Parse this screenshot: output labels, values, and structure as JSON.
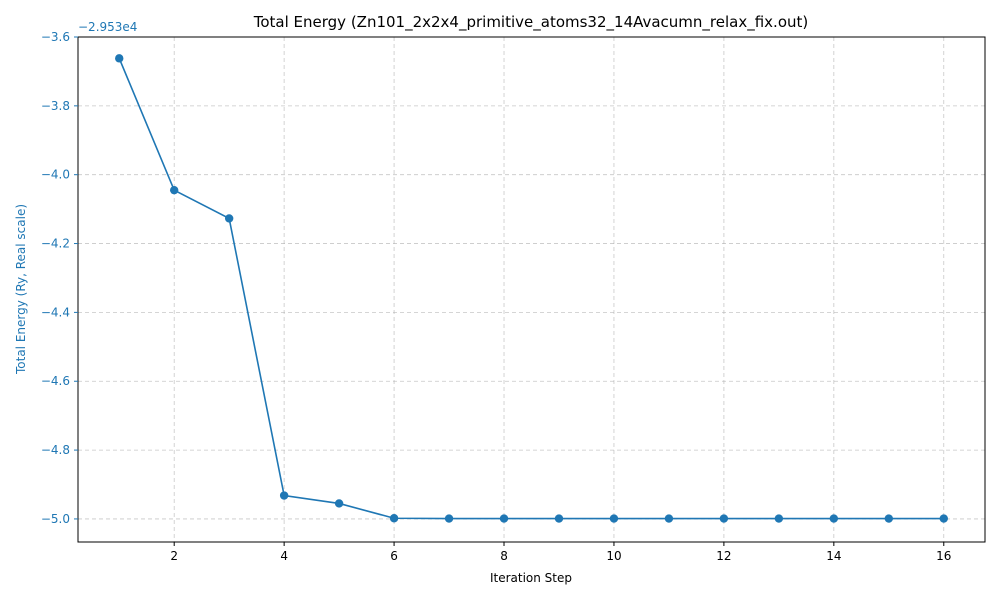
{
  "chart_data": {
    "type": "line",
    "title": "Total Energy (Zn101_2x2x4_primitive_atoms32_14Avacumn_relax_fix.out)",
    "xlabel": "Iteration Step",
    "ylabel": "Total Energy (Ry, Real scale)",
    "offset_label": "−2.953e4",
    "x": [
      1,
      2,
      3,
      4,
      5,
      6,
      7,
      8,
      9,
      10,
      11,
      12,
      13,
      14,
      15,
      16
    ],
    "series": [
      {
        "name": "",
        "values": [
          -3.662,
          -4.045,
          -4.127,
          -4.932,
          -4.955,
          -4.998,
          -4.999,
          -4.999,
          -4.999,
          -4.999,
          -4.999,
          -4.999,
          -4.999,
          -4.999,
          -4.999,
          -4.999
        ]
      }
    ],
    "xlim": [
      0.25,
      16.75
    ],
    "ylim": [
      -5.067,
      -3.6
    ],
    "xticks": [
      2,
      4,
      6,
      8,
      10,
      12,
      14,
      16
    ],
    "xtick_labels": [
      "2",
      "4",
      "6",
      "8",
      "10",
      "12",
      "14",
      "16"
    ],
    "yticks": [
      -5.0,
      -4.8,
      -4.6,
      -4.4,
      -4.2,
      -4.0,
      -3.8,
      -3.6
    ],
    "ytick_labels": [
      "−5.0",
      "−4.8",
      "−4.6",
      "−4.4",
      "−4.2",
      "−4.0",
      "−3.8",
      "−3.6"
    ],
    "grid": true,
    "colors": {
      "series": "#1f77b4",
      "ylabel": "#1f77b4",
      "grid": "#b0b0b0",
      "axis": "#000000"
    }
  }
}
